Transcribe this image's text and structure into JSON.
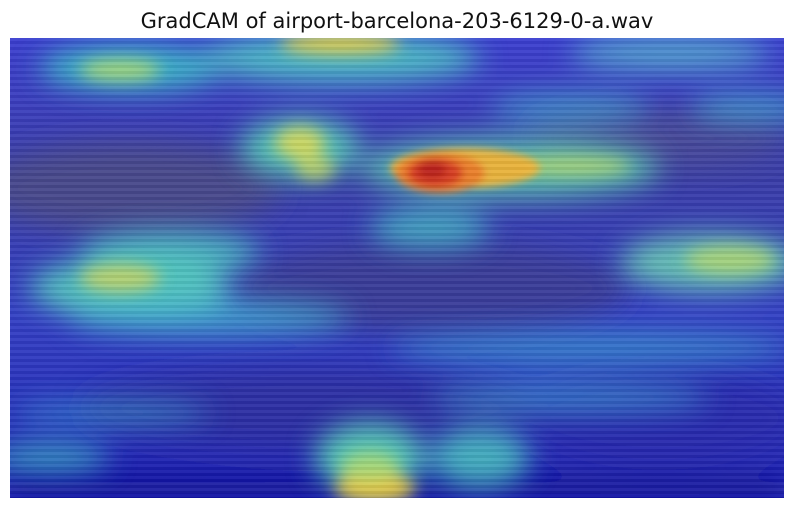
{
  "figure": {
    "title": "GradCAM of airport-barcelona-203-6129-0-a.wav"
  },
  "colors": {
    "background": "#ffffff",
    "colormap_low": "#1a1ac8",
    "colormap_mid": "#3fd6c4",
    "colormap_high": "#d62a1e",
    "colormap_peak_yellow": "#f2d13a"
  }
}
